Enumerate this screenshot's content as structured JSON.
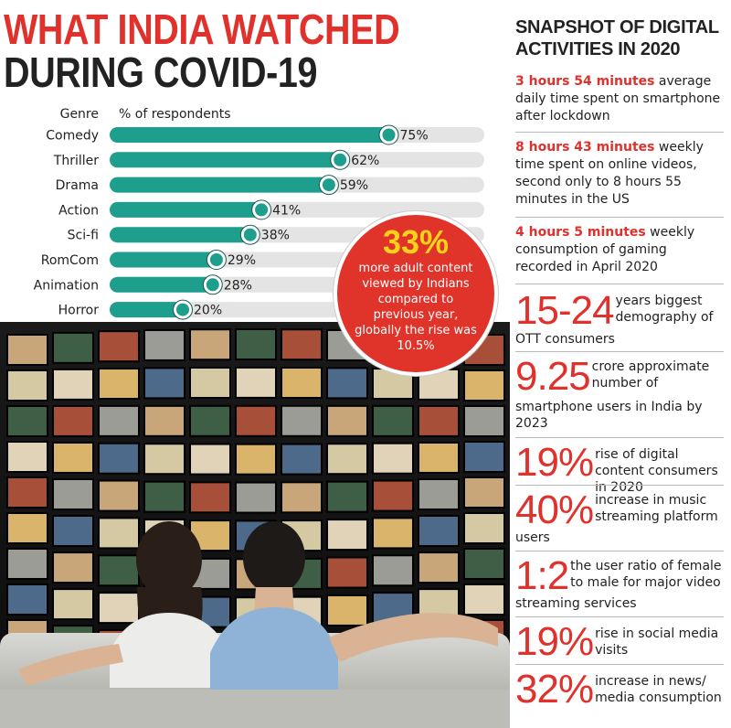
{
  "title": {
    "line1": "WHAT INDIA WATCHED",
    "line2": "DURING COVID-19"
  },
  "chart_data": {
    "type": "bar",
    "orientation": "horizontal",
    "xlabel": "% of respondents",
    "ylabel": "Genre",
    "xlim": [
      0,
      100
    ],
    "categories": [
      "Comedy",
      "Thriller",
      "Drama",
      "Action",
      "Sci-fi",
      "RomCom",
      "Animation",
      "Horror"
    ],
    "values": [
      75,
      62,
      59,
      41,
      38,
      29,
      28,
      20
    ],
    "value_labels": [
      "75%",
      "62%",
      "59%",
      "41%",
      "38%",
      "29%",
      "28%",
      "20%"
    ],
    "colors": {
      "bar": "#1e9e8c",
      "track": "#e4e4e4",
      "marker": "#1e9e8c"
    }
  },
  "callout": {
    "value": "33%",
    "text": "more adult content viewed by Indians compared to previous year, globally the rise was 10.5%"
  },
  "panel": {
    "title": "SNAPSHOT OF DIGITAL ACTIVITIES IN 2020",
    "facts": [
      {
        "highlight": "3 hours 54 minutes",
        "text": " average daily time spent on smartphone after lockdown"
      },
      {
        "highlight": "8 hours 43 minutes",
        "text": " weekly time spent on online videos, second only to 8 hours 55 minutes in the US"
      },
      {
        "highlight": "4 hours 5 minutes",
        "text": " weekly consumption of gaming recorded in April 2020"
      }
    ],
    "stats": [
      {
        "num": "15-24",
        "text": "years biggest demography of",
        "rest": "OTT consumers"
      },
      {
        "num": "9.25",
        "text": "crore approximate number of",
        "rest": "smartphone users in India by 2023"
      },
      {
        "num": "19%",
        "text": "rise of digital content consumers in 2020",
        "rest": ""
      },
      {
        "num": "40%",
        "text": "increase in music streaming platform",
        "rest": "users"
      },
      {
        "num": "1:2",
        "text": "the user ratio of female to male for major video",
        "rest": "streaming services"
      },
      {
        "num": "19%",
        "text": "rise in social media visits",
        "rest": ""
      },
      {
        "num": "32%",
        "text": "increase in news/ media consumption",
        "rest": ""
      }
    ],
    "accent": "#e0312c"
  }
}
